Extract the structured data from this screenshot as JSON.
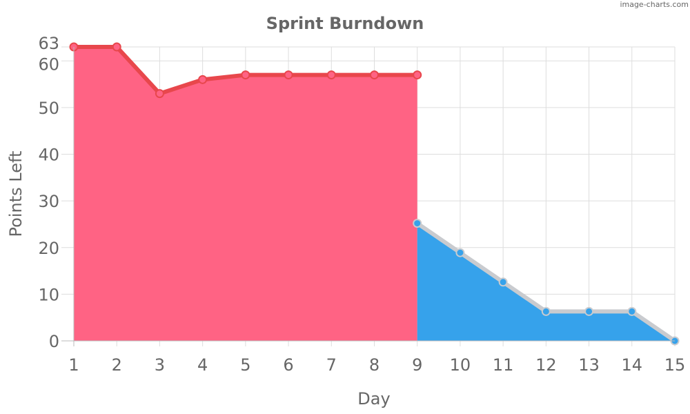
{
  "watermark": "image-charts.com",
  "chart_data": {
    "type": "area",
    "title": "Sprint Burndown",
    "xlabel": "Day",
    "ylabel": "Points Left",
    "x": [
      1,
      2,
      3,
      4,
      5,
      6,
      7,
      8,
      9,
      10,
      11,
      12,
      13,
      14,
      15
    ],
    "xlim": [
      1,
      15
    ],
    "ylim": [
      0,
      63
    ],
    "yticks": [
      0,
      10,
      20,
      30,
      40,
      50,
      60,
      63
    ],
    "grid": true,
    "legend": "none",
    "series": [
      {
        "x": [
          1,
          2,
          3,
          4,
          5,
          6,
          7,
          8,
          9
        ],
        "values": [
          63,
          63,
          53,
          56,
          57,
          57,
          57,
          57,
          57
        ],
        "fill_color": "#ff6384",
        "line_color": "#e8474c",
        "marker_color": "#ff6384"
      },
      {
        "x": [
          9,
          10,
          11,
          12,
          13,
          14,
          15
        ],
        "values": [
          25.2,
          18.9,
          12.6,
          6.3,
          6.3,
          6.3,
          0
        ],
        "fill_color": "#36a2eb",
        "line_color": "#c9cbcf",
        "marker_color": "#36a2eb"
      }
    ]
  }
}
